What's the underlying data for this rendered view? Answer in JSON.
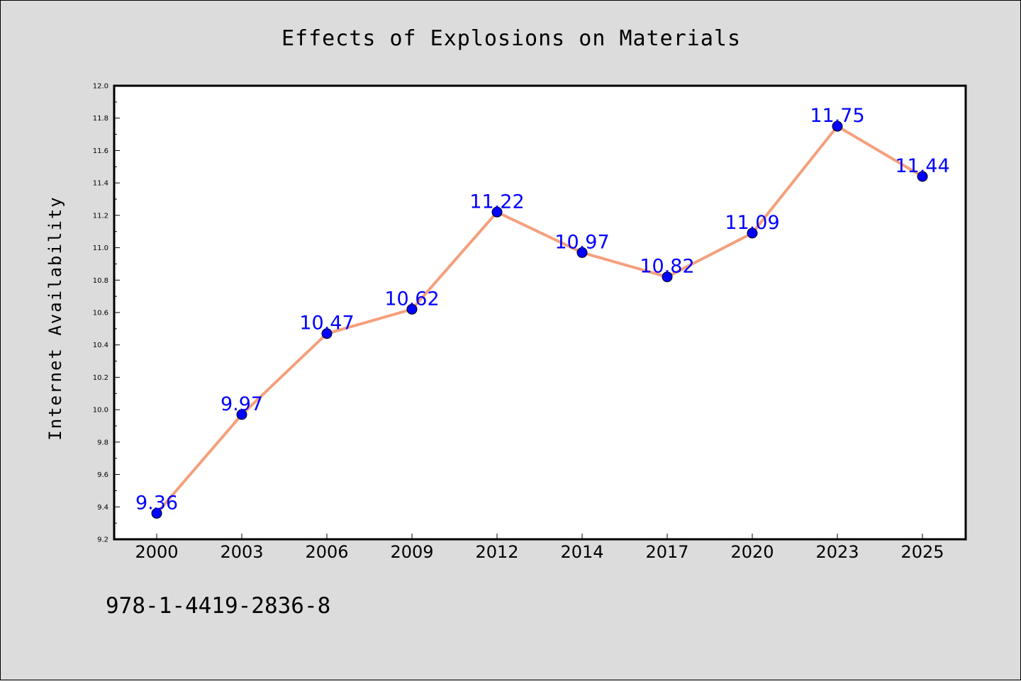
{
  "chart_data": {
    "type": "line",
    "title": "Effects of Explosions on Materials",
    "xlabel": "",
    "ylabel": "Internet Availability",
    "categories": [
      "2000",
      "2003",
      "2006",
      "2009",
      "2012",
      "2014",
      "2017",
      "2020",
      "2023",
      "2025"
    ],
    "series": [
      {
        "values": [
          9.36,
          9.97,
          10.47,
          10.62,
          11.22,
          10.97,
          10.82,
          11.09,
          11.75,
          11.44
        ]
      }
    ],
    "data_labels": [
      "9.36",
      "9.97",
      "10.47",
      "10.62",
      "11.22",
      "10.97",
      "10.82",
      "11.09",
      "11.75",
      "11.44"
    ],
    "ylim": [
      9.2,
      12.0
    ],
    "yticks": [
      "9.2",
      "9.4",
      "9.6",
      "9.8",
      "10.0",
      "10.2",
      "10.4",
      "10.6",
      "10.8",
      "11.0",
      "11.2",
      "11.4",
      "11.6",
      "11.8",
      "12.0"
    ],
    "grid": false,
    "line_color": "#f4a07c",
    "marker_color": "#0000ff",
    "label_color": "#0000ff"
  },
  "footer": {
    "text": "978-1-4419-2836-8"
  }
}
